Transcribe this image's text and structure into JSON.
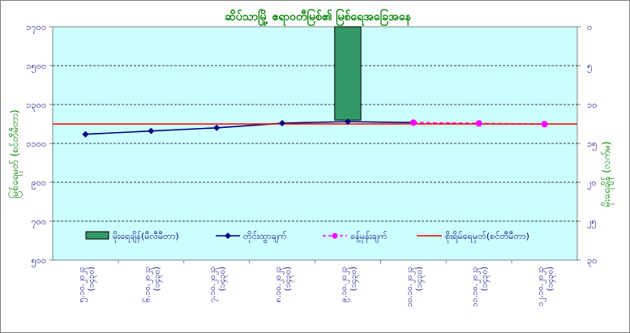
{
  "chart_data": {
    "type": "line",
    "title": "ဆိပ်သာမြို့ ဧရာဝတီမြစ်၏ မြစ်ရေအခြေအနေ",
    "ylabel_left": "မြစ်ရေမှတ် (စင်တီမီတာ)",
    "ylabel_right": "မိုးရေချိန် (လက်မ)",
    "left_axis": {
      "min": 500,
      "max": 1700,
      "ticks": [
        "၁၇၀၀",
        "၁၅၀၀",
        "၁၃၀၀",
        "၁၁၀၀",
        "၉၀၀",
        "၇၀၀",
        "၅၀၀"
      ]
    },
    "right_axis": {
      "min": 0,
      "max": 25,
      "inverted": true,
      "ticks": [
        "၀",
        "၅",
        "၁၀",
        "၁၅",
        "၂၀",
        "၂၅",
        "၃၀"
      ]
    },
    "categories": [
      "၅.၁၀.၂၀၂၃\n(၁၄၃၀)",
      "၆.၁၀.၂၀၂၃\n(၁၄၃၀)",
      "၇.၁၀.၂၀၂၃\n(၁၄၃၀)",
      "၈.၁၀.၂၀၂၃\n(၁၄၃၀)",
      "၉.၁၀.၂၀၂၃\n(၁၄၃၀)",
      "၁၀.၁၀.၂၀၂၃\n(၁၄၃၀)",
      "၁၁.၁၀.၂၀၂၃\n(၁၄၃၀)",
      "၁၂.၁၀.၂၀၂၃\n(၁၄၃၀)"
    ],
    "series": [
      {
        "name": "မိုးရေချိန်(မီလီမီတာ)",
        "kind": "bar",
        "axis": "right",
        "color": "#339966",
        "values": [
          0,
          0,
          0,
          0,
          10,
          0,
          0,
          0
        ]
      },
      {
        "name": "တိုင်းထွာချက်",
        "kind": "line",
        "axis": "left",
        "color": "#000080",
        "marker": "diamond",
        "values": [
          1147,
          1164,
          1180,
          1204,
          1212,
          1207,
          null,
          null
        ]
      },
      {
        "name": "ခန့်မှန်းချက်",
        "kind": "line",
        "axis": "left",
        "color": "#FF00FF",
        "marker": "circle",
        "dashed": true,
        "values": [
          null,
          null,
          null,
          null,
          null,
          1207,
          1203,
          1199
        ]
      },
      {
        "name": "စိုးရိမ်ရေမှတ်(စင်တီမီတာ)",
        "kind": "line",
        "axis": "left",
        "color": "#FF0000",
        "values": [
          1200,
          1200,
          1200,
          1200,
          1200,
          1200,
          1200,
          1200
        ]
      }
    ],
    "plot_background": "#CCFFFF",
    "gridlines": true,
    "legend_position": "inside-bottom"
  }
}
